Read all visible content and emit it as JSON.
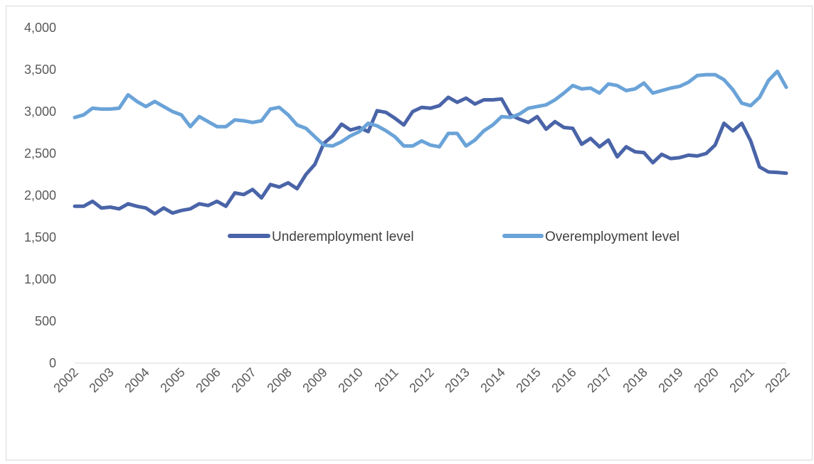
{
  "chart_data": {
    "type": "line",
    "title": "",
    "xlabel": "",
    "ylabel": "",
    "ylim": [
      0,
      4000
    ],
    "yticks": [
      0,
      500,
      1000,
      1500,
      2000,
      2500,
      3000,
      3500,
      4000
    ],
    "ytick_labels": [
      "0",
      "500",
      "1,000",
      "1,500",
      "2,000",
      "2,500",
      "3,000",
      "3,500",
      "4,000"
    ],
    "xlim": [
      2002,
      2022
    ],
    "xtick_labels": [
      "2002",
      "2003",
      "2004",
      "2005",
      "2006",
      "2007",
      "2008",
      "2009",
      "2010",
      "2011",
      "2012",
      "2013",
      "2014",
      "2015",
      "2016",
      "2017",
      "2018",
      "2019",
      "2020",
      "2021",
      "2022"
    ],
    "grid": false,
    "legend_position": "center",
    "series": [
      {
        "name": "Underemployment level",
        "color": "#4a64a8",
        "values": [
          1870,
          1870,
          1930,
          1850,
          1860,
          1840,
          1900,
          1870,
          1850,
          1780,
          1850,
          1790,
          1820,
          1840,
          1900,
          1880,
          1930,
          1870,
          2030,
          2010,
          2070,
          1970,
          2130,
          2100,
          2150,
          2080,
          2250,
          2370,
          2620,
          2710,
          2850,
          2780,
          2810,
          2760,
          3010,
          2990,
          2920,
          2840,
          3000,
          3050,
          3040,
          3070,
          3170,
          3110,
          3160,
          3090,
          3140,
          3140,
          3150,
          2960,
          2910,
          2870,
          2940,
          2790,
          2880,
          2810,
          2800,
          2610,
          2680,
          2580,
          2660,
          2460,
          2580,
          2520,
          2510,
          2390,
          2490,
          2440,
          2450,
          2480,
          2470,
          2500,
          2600,
          2860,
          2770,
          2860,
          2650,
          2340,
          2280,
          2275,
          2265
        ]
      },
      {
        "name": "Overemployment level",
        "color": "#6aa3d8",
        "values": [
          2930,
          2960,
          3040,
          3030,
          3030,
          3040,
          3200,
          3120,
          3060,
          3120,
          3060,
          3000,
          2960,
          2820,
          2940,
          2880,
          2820,
          2820,
          2900,
          2890,
          2870,
          2890,
          3030,
          3050,
          2960,
          2840,
          2800,
          2700,
          2600,
          2590,
          2640,
          2710,
          2760,
          2860,
          2830,
          2770,
          2700,
          2590,
          2590,
          2650,
          2600,
          2580,
          2740,
          2740,
          2590,
          2660,
          2770,
          2840,
          2940,
          2930,
          2970,
          3040,
          3060,
          3080,
          3140,
          3220,
          3310,
          3270,
          3280,
          3220,
          3330,
          3310,
          3250,
          3270,
          3340,
          3220,
          3250,
          3280,
          3300,
          3350,
          3430,
          3440,
          3440,
          3380,
          3260,
          3100,
          3070,
          3170,
          3370,
          3480,
          3290
        ]
      }
    ]
  }
}
